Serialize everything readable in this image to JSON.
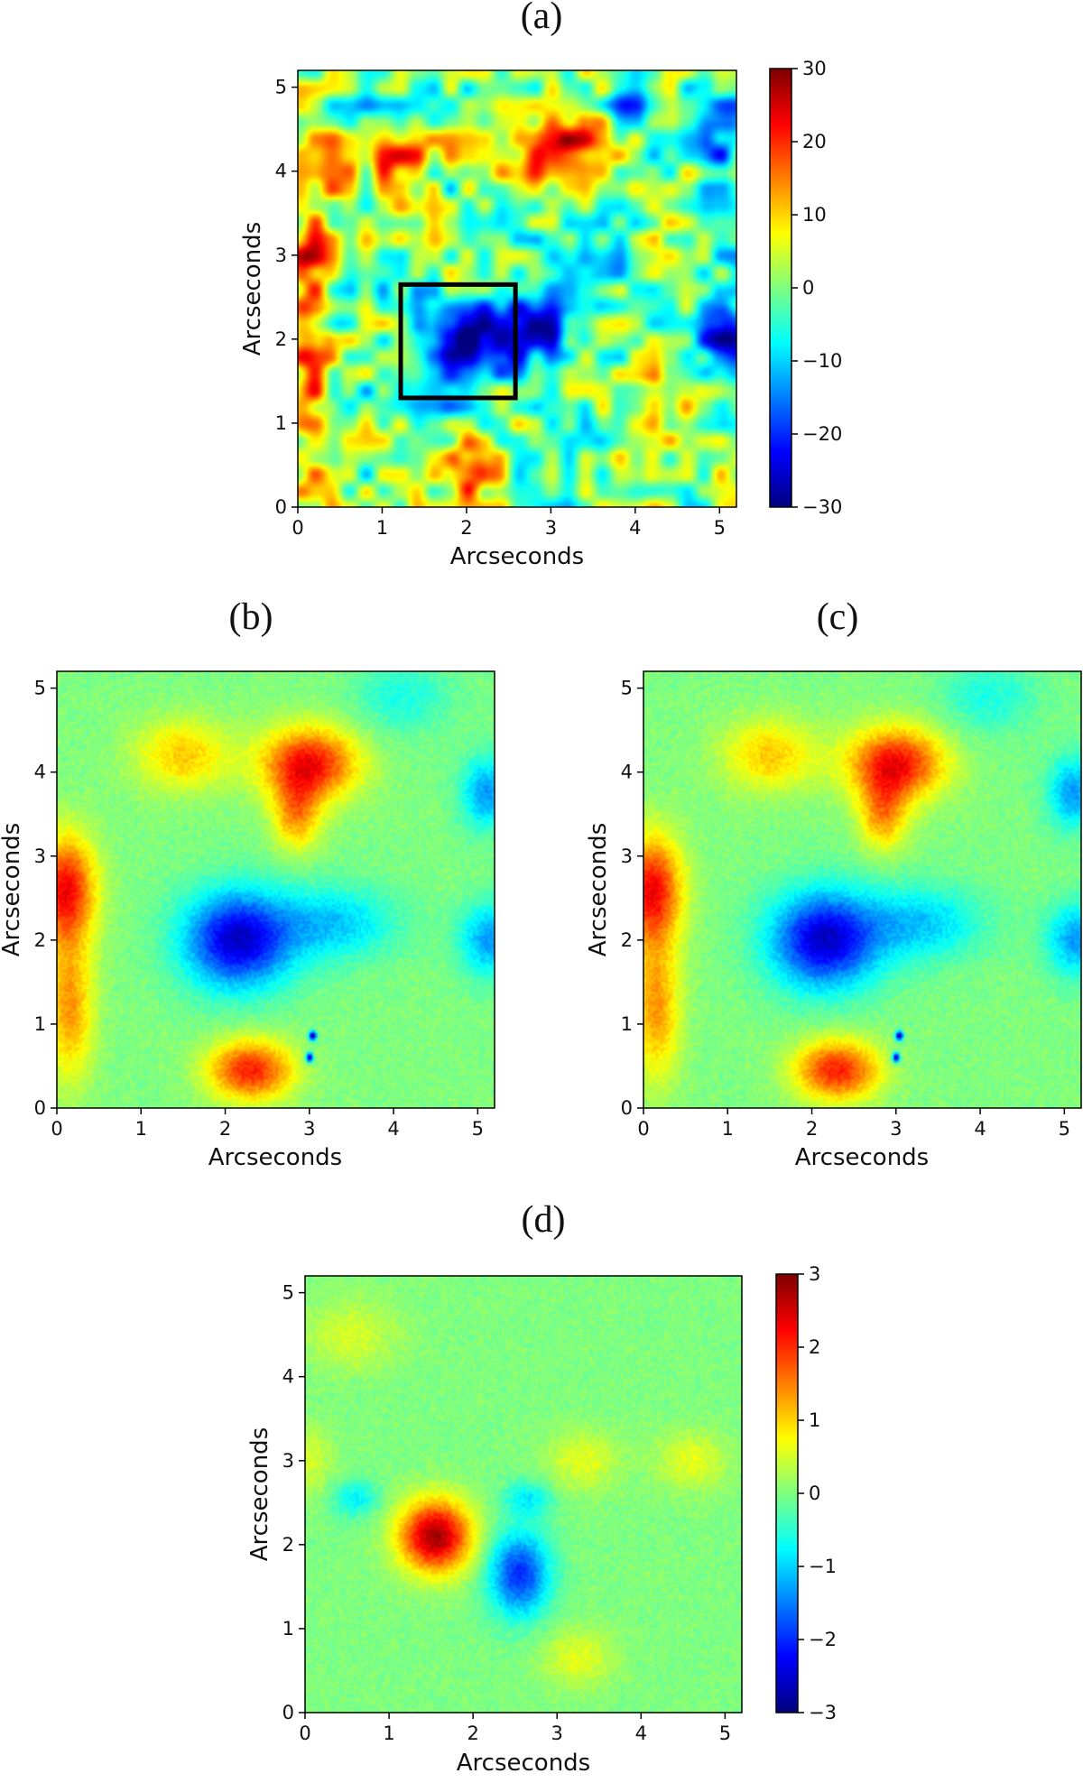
{
  "chart_data": [
    {
      "panel": "(a)",
      "type": "heatmap",
      "xlabel": "Arcseconds",
      "ylabel": "Arcseconds",
      "xlim": [
        0,
        5.2
      ],
      "ylim": [
        0,
        5.2
      ],
      "xticks": [
        "0",
        "1",
        "2",
        "3",
        "4",
        "5"
      ],
      "yticks": [
        "0",
        "1",
        "2",
        "3",
        "4",
        "5"
      ],
      "colormap": "jet",
      "colorbar": {
        "range": [
          -30,
          30
        ],
        "ticks": [
          "30",
          "20",
          "10",
          "0",
          "−10",
          "−20",
          "−30"
        ]
      },
      "annotation": {
        "type": "rectangle",
        "x_range": [
          1.22,
          2.58
        ],
        "y_range": [
          1.3,
          2.65
        ]
      },
      "features": [
        {
          "x": 2.0,
          "y": 2.05,
          "value": -28,
          "sx": 0.5,
          "sy": 0.35
        },
        {
          "x": 2.9,
          "y": 2.1,
          "value": -14,
          "sx": 0.35,
          "sy": 0.3
        },
        {
          "x": 1.6,
          "y": 1.5,
          "value": -10,
          "sx": 0.4,
          "sy": 0.3
        },
        {
          "x": 0.15,
          "y": 2.0,
          "value": 20,
          "sx": 0.2,
          "sy": 1.6
        },
        {
          "x": 1.15,
          "y": 4.1,
          "value": 18,
          "sx": 0.35,
          "sy": 0.25
        },
        {
          "x": 3.1,
          "y": 4.2,
          "value": 22,
          "sx": 0.45,
          "sy": 0.4
        },
        {
          "x": 2.1,
          "y": 0.45,
          "value": 20,
          "sx": 0.25,
          "sy": 0.35
        },
        {
          "x": 5.05,
          "y": 2.1,
          "value": -22,
          "sx": 0.2,
          "sy": 0.3
        },
        {
          "x": 5.05,
          "y": 4.2,
          "value": -16,
          "sx": 0.2,
          "sy": 0.6
        },
        {
          "x": 4.0,
          "y": 4.8,
          "value": -14,
          "sx": 0.3,
          "sy": 0.3
        },
        {
          "x": 3.6,
          "y": 2.8,
          "value": -12,
          "sx": 0.4,
          "sy": 0.3
        },
        {
          "x": 4.5,
          "y": 1.4,
          "value": 8,
          "sx": 0.4,
          "sy": 0.4
        }
      ],
      "noise": 9
    },
    {
      "panel": "(b)",
      "type": "heatmap",
      "xlabel": "Arcseconds",
      "ylabel": "Arcseconds",
      "xlim": [
        0,
        5.2
      ],
      "ylim": [
        0,
        5.2
      ],
      "xticks": [
        "0",
        "1",
        "2",
        "3",
        "4",
        "5"
      ],
      "yticks": [
        "0",
        "1",
        "2",
        "3",
        "4",
        "5"
      ],
      "colormap": "jet",
      "features": [
        {
          "x": 2.15,
          "y": 2.0,
          "value": -0.85,
          "sx": 0.45,
          "sy": 0.4
        },
        {
          "x": 3.3,
          "y": 2.2,
          "value": -0.35,
          "sx": 0.5,
          "sy": 0.3
        },
        {
          "x": 3.0,
          "y": 4.1,
          "value": 0.75,
          "sx": 0.4,
          "sy": 0.3
        },
        {
          "x": 2.85,
          "y": 3.5,
          "value": 0.45,
          "sx": 0.2,
          "sy": 0.3
        },
        {
          "x": 0.1,
          "y": 2.6,
          "value": 0.75,
          "sx": 0.25,
          "sy": 0.45
        },
        {
          "x": 0.15,
          "y": 1.2,
          "value": 0.45,
          "sx": 0.2,
          "sy": 0.6
        },
        {
          "x": 2.3,
          "y": 0.45,
          "value": 0.7,
          "sx": 0.35,
          "sy": 0.25
        },
        {
          "x": 5.15,
          "y": 2.0,
          "value": -0.45,
          "sx": 0.25,
          "sy": 0.3
        },
        {
          "x": 5.1,
          "y": 3.75,
          "value": -0.45,
          "sx": 0.2,
          "sy": 0.3
        },
        {
          "x": 4.1,
          "y": 4.9,
          "value": -0.2,
          "sx": 0.4,
          "sy": 0.3
        },
        {
          "x": 1.5,
          "y": 4.2,
          "value": 0.35,
          "sx": 0.4,
          "sy": 0.3
        }
      ],
      "spots": [
        {
          "x": 3.04,
          "y": 0.86
        },
        {
          "x": 3.0,
          "y": 0.6
        }
      ],
      "noise": 0.06
    },
    {
      "panel": "(c)",
      "type": "heatmap",
      "xlabel": "Arcseconds",
      "ylabel": "Arcseconds",
      "xlim": [
        0,
        5.2
      ],
      "ylim": [
        0,
        5.2
      ],
      "xticks": [
        "0",
        "1",
        "2",
        "3",
        "4",
        "5"
      ],
      "yticks": [
        "0",
        "1",
        "2",
        "3",
        "4",
        "5"
      ],
      "colormap": "jet",
      "features": [
        {
          "x": 2.15,
          "y": 2.0,
          "value": -0.85,
          "sx": 0.45,
          "sy": 0.4
        },
        {
          "x": 3.3,
          "y": 2.2,
          "value": -0.35,
          "sx": 0.5,
          "sy": 0.3
        },
        {
          "x": 3.0,
          "y": 4.1,
          "value": 0.75,
          "sx": 0.4,
          "sy": 0.3
        },
        {
          "x": 2.85,
          "y": 3.5,
          "value": 0.45,
          "sx": 0.2,
          "sy": 0.3
        },
        {
          "x": 0.1,
          "y": 2.6,
          "value": 0.75,
          "sx": 0.25,
          "sy": 0.45
        },
        {
          "x": 0.15,
          "y": 1.2,
          "value": 0.45,
          "sx": 0.2,
          "sy": 0.6
        },
        {
          "x": 2.3,
          "y": 0.45,
          "value": 0.7,
          "sx": 0.35,
          "sy": 0.25
        },
        {
          "x": 5.15,
          "y": 2.0,
          "value": -0.45,
          "sx": 0.25,
          "sy": 0.3
        },
        {
          "x": 5.1,
          "y": 3.75,
          "value": -0.45,
          "sx": 0.2,
          "sy": 0.3
        },
        {
          "x": 4.1,
          "y": 4.9,
          "value": -0.2,
          "sx": 0.4,
          "sy": 0.3
        },
        {
          "x": 1.5,
          "y": 4.2,
          "value": 0.35,
          "sx": 0.4,
          "sy": 0.3
        }
      ],
      "spots": [
        {
          "x": 3.04,
          "y": 0.86
        },
        {
          "x": 3.0,
          "y": 0.6
        }
      ],
      "noise": 0.06
    },
    {
      "panel": "(d)",
      "type": "heatmap",
      "xlabel": "Arcseconds",
      "ylabel": "Arcseconds",
      "xlim": [
        0,
        5.2
      ],
      "ylim": [
        0,
        5.2
      ],
      "xticks": [
        "0",
        "1",
        "2",
        "3",
        "4",
        "5"
      ],
      "yticks": [
        "0",
        "1",
        "2",
        "3",
        "4",
        "5"
      ],
      "colormap": "jet",
      "colorbar": {
        "range": [
          -3,
          3
        ],
        "ticks": [
          "3",
          "2",
          "1",
          "0",
          "−1",
          "−2",
          "−3"
        ]
      },
      "features": [
        {
          "x": 1.55,
          "y": 2.1,
          "value": 2.8,
          "sx": 0.3,
          "sy": 0.3
        },
        {
          "x": 2.55,
          "y": 1.65,
          "value": -2.0,
          "sx": 0.25,
          "sy": 0.35
        },
        {
          "x": 2.65,
          "y": 2.55,
          "value": -0.8,
          "sx": 0.2,
          "sy": 0.15
        },
        {
          "x": 0.6,
          "y": 2.55,
          "value": -0.8,
          "sx": 0.2,
          "sy": 0.15
        },
        {
          "x": 3.25,
          "y": 0.65,
          "value": 0.6,
          "sx": 0.3,
          "sy": 0.25
        },
        {
          "x": 0.55,
          "y": 4.5,
          "value": 0.5,
          "sx": 0.4,
          "sy": 0.3
        },
        {
          "x": 3.3,
          "y": 3.0,
          "value": 0.6,
          "sx": 0.3,
          "sy": 0.25
        },
        {
          "x": 4.6,
          "y": 3.0,
          "value": 0.6,
          "sx": 0.3,
          "sy": 0.25
        },
        {
          "x": 0.05,
          "y": 3.0,
          "value": 0.5,
          "sx": 0.2,
          "sy": 0.3
        }
      ],
      "noise": 0.18
    }
  ]
}
